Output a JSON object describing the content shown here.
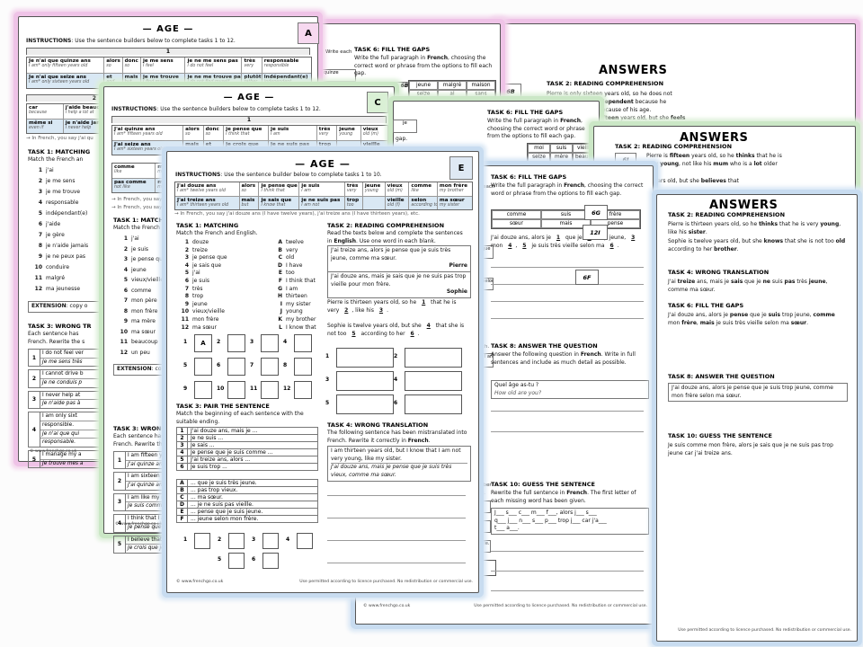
{
  "colors": {
    "pink": "#efc3e7",
    "green": "#cbe7c6",
    "blue": "#c8dcf0"
  },
  "footer": {
    "copyright": "© www.frenchgo.co.uk",
    "licence": "Use permitted according to licence purchased. No redistribution or commercial use."
  },
  "a1": {
    "title": "— AGE —",
    "badge": "A",
    "instructions": [
      [
        "b",
        "INSTRUCTIONS"
      ],
      ": Use the sentence builders below to complete tasks 1 to 12."
    ],
    "builder1_header": "1",
    "builder1": {
      "cols": [
        {
          "w": 88,
          "c": [
            [
              "Je n'ai que quinze ans",
              "I am* only fifteen years old"
            ],
            [
              "Je n'ai que seize ans",
              "I am* only sixteen years old"
            ]
          ]
        },
        {
          "w": 20,
          "c": [
            [
              "alors",
              "so"
            ],
            [
              "et",
              "and"
            ]
          ]
        },
        {
          "w": 20,
          "c": [
            [
              "donc",
              "so"
            ],
            [
              "mais",
              "but"
            ]
          ]
        },
        {
          "w": 50,
          "c": [
            [
              "je me sens",
              "I feel"
            ],
            [
              "je me trouve",
              "I find myself"
            ]
          ]
        },
        {
          "w": 64,
          "c": [
            [
              "je ne me sens pas",
              "I do not feel"
            ],
            [
              "je ne me trouve pas",
              "I do not find myself"
            ]
          ]
        },
        {
          "w": 22,
          "c": [
            [
              "très",
              "very"
            ],
            [
              "plutôt",
              "rather"
            ]
          ]
        },
        {
          "w": 56,
          "c": [
            [
              "responsable",
              "responsible"
            ],
            [
              "indépendant(e)",
              "independent"
            ]
          ]
        }
      ]
    },
    "builder2_header": "2",
    "builder2": {
      "cols": [
        {
          "w": 40,
          "c": [
            [
              "car",
              "because"
            ],
            [
              "même si",
              "even if"
            ]
          ]
        },
        {
          "w": 112,
          "c": [
            [
              "j'aide beaucoup à la",
              "I help a lot at"
            ],
            [
              "je n'aide jamais",
              "I never help"
            ]
          ]
        }
      ]
    },
    "note": "→ In French, you say j'ai qu",
    "task1": {
      "title": "TASK 1: MATCHING",
      "sub": "Match the French an",
      "items": [
        "j'ai",
        "je me sens",
        "je me trouve",
        "responsable",
        "indépendant(e)",
        "j'aide",
        "je gère",
        "je n'aide jamais",
        "je ne peux pas",
        "conduire",
        "malgré",
        "ma jeunesse"
      ]
    },
    "extension": [
      [
        "b",
        "EXTENSION"
      ],
      ": copy o"
    ],
    "task3": {
      "title": "TASK 3: WRONG TR",
      "sub1": "Each  sentence  has",
      "sub2": "French. Rewrite the s",
      "rows": [
        {
          "en": [
            "I do not feel ver"
          ],
          "fr": [
            "Je me sens très"
          ]
        },
        {
          "en": [
            "I cannot drive b"
          ],
          "fr": [
            "Je ne conduis p"
          ]
        },
        {
          "en": [
            "I never help at"
          ],
          "fr": [
            "Je n'aide pas à"
          ]
        },
        {
          "en": [
            "I am only sixt",
            "responsible."
          ],
          "fr": [
            "Je n'ai que qui",
            "responsable."
          ]
        },
        {
          "en": [
            "I manage my a"
          ],
          "fr": [
            "Je trouve mes a"
          ]
        }
      ]
    }
  },
  "a2": {
    "task6_title": "TASK 6: FILL THE GAPS",
    "task6_sub": [
      "Write the full paragraph in ",
      [
        "b",
        "French"
      ],
      ", choosing the correct word or phrase from the options to fill each gap."
    ],
    "options": [
      [
        "jeune",
        "malgré",
        "maison"
      ],
      [
        "seize",
        "ai",
        "sans"
      ]
    ],
    "frag_write": "Write each",
    "frag_quinze": "quinze",
    "frag_badge": "6B"
  },
  "answers_a": {
    "title": "ANSWERS",
    "task2_title": "TASK 2: READING COMPREHENSION",
    "badge": "6B",
    "l1": [
      "Pierre  is  only  sixteen  years  old,  so  he  does  not"
    ],
    "l2": [
      [
        "b",
        "find"
      ],
      "  himself  very  ",
      [
        "b",
        "independent"
      ],
      "  because  he"
    ],
    "l3": [
      "because of his age."
    ],
    "l4": [
      [
        "b",
        "fifteen"
      ],
      "  years  old,  but  she  ",
      [
        "b",
        "feels"
      ]
    ]
  },
  "c1": {
    "title": "— AGE —",
    "badge": "C",
    "instructions": [
      [
        "b",
        "INSTRUCTIONS"
      ],
      ": Use the sentence builders below to complete tasks 1 to 12."
    ],
    "builder1_header": "1",
    "builder1": {
      "cols": [
        {
          "w": 80,
          "c": [
            [
              "J'ai quinze ans",
              "I am* fifteen years old"
            ],
            [
              "J'ai seize ans",
              "I am* sixteen years old"
            ]
          ]
        },
        {
          "w": 22,
          "c": [
            [
              "alors",
              "so"
            ],
            [
              "mais",
              "but"
            ]
          ]
        },
        {
          "w": 22,
          "c": [
            [
              "donc",
              "so"
            ],
            [
              "et",
              "and"
            ]
          ]
        },
        {
          "w": 50,
          "c": [
            [
              "je pense que",
              "I think that"
            ],
            [
              "je crois que",
              "I believe that"
            ]
          ]
        },
        {
          "w": 54,
          "c": [
            [
              "je suis",
              "I am"
            ],
            [
              "je ne suis pas",
              "I am not"
            ]
          ]
        },
        {
          "w": 22,
          "c": [
            [
              "très",
              "very"
            ],
            [
              "trop",
              "too"
            ]
          ]
        },
        {
          "w": 26,
          "c": [
            [
              "jeune",
              "young"
            ],
            0
          ]
        },
        {
          "w": 30,
          "c": [
            [
              "vieux",
              "old (m)"
            ],
            [
              "vieille",
              "old (f)"
            ]
          ]
        }
      ]
    },
    "builder2": {
      "cols": [
        {
          "w": 46,
          "c": [
            [
              "comme",
              "like"
            ],
            [
              "pas comme",
              "not like"
            ]
          ]
        },
        {
          "w": 60,
          "c": [
            [
              "mon père",
              "my dad"
            ],
            [
              "mon frère",
              "my brother"
            ]
          ]
        }
      ]
    },
    "notes": [
      "→ In French, you say j'ai quinz",
      "→ In French, you say je suis pl"
    ],
    "task1": {
      "title": "TASK 1: MATCHING",
      "sub": "Match the French and E",
      "items": [
        "j'ai",
        "je suis",
        "je pense que",
        "jeune",
        "vieux/vieille",
        "comme",
        "mon père",
        "mon frère",
        "ma mère",
        "ma sœur",
        "beaucoup",
        "un peu"
      ]
    },
    "extension": [
      [
        "b",
        "EXTENSION"
      ],
      ": copy out"
    ],
    "task3": {
      "title": "TASK 3: WRONG TRAN",
      "sub1": "Each  sentence  has  b",
      "sub2": "French. Rewrite the sent",
      "rows": [
        {
          "en": [
            "I am fifteen years"
          ],
          "fr": [
            "J'ai quinze ans, alo"
          ]
        },
        {
          "en": [
            "I am sixteen years"
          ],
          "fr": [
            "J'ai quinze ans, ma"
          ]
        },
        {
          "en": [
            "I am like my mum."
          ],
          "fr": [
            "Je suis comme ma"
          ]
        },
        {
          "en": [
            "I think that I am n"
          ],
          "fr": [
            "Je pense que je su"
          ]
        },
        {
          "en": [
            "I believe that I am"
          ],
          "fr": [
            "Je crois que je suis"
          ]
        }
      ]
    }
  },
  "c2": {
    "task6_title": "TASK 6: FILL THE GAPS",
    "task6_sub": [
      "Write the full paragraph in ",
      [
        "b",
        "French"
      ],
      ", choosing the correct word or phrase from the options to fill each gap."
    ],
    "options": [
      [
        "moi",
        "suis",
        "vieille"
      ],
      [
        "seize",
        "mère",
        "beaucoup"
      ]
    ],
    "frag_je": "je",
    "frag_gap": "gap."
  },
  "answers_c": {
    "title": "ANSWERS",
    "task2_title": "TASK 2: READING COMPREHENSION",
    "badge": "6J",
    "l1": [
      "Pierre is ",
      [
        "b",
        "fifteen"
      ],
      " years old, so he ",
      [
        "b",
        "thinks"
      ],
      " that he is"
    ],
    "l2": [
      "very ",
      [
        "b",
        "young"
      ],
      ", not like his ",
      [
        "b",
        "mum"
      ],
      " who is a ",
      [
        "b",
        "lot"
      ],
      " older"
    ],
    "l3": [
      "years old, but she ",
      [
        "b",
        "believes"
      ],
      " that"
    ]
  },
  "e1": {
    "title": "— AGE —",
    "badge": "E",
    "instructions": [
      [
        "b",
        "INSTRUCTIONS"
      ],
      ": Use the sentence builder below to complete tasks 1 to 10."
    ],
    "builder": {
      "cols": [
        {
          "w": 74,
          "c": [
            [
              "J'ai douze ans",
              "I am* twelve years old"
            ],
            [
              "J'ai treize ans",
              "I am* thirteen years old"
            ]
          ]
        },
        {
          "w": 22,
          "c": [
            [
              "alors",
              "so"
            ],
            [
              "mais",
              "but"
            ]
          ]
        },
        {
          "w": 46,
          "c": [
            [
              "je pense que",
              "I think that"
            ],
            [
              "je sais que",
              "I know that"
            ]
          ]
        },
        {
          "w": 52,
          "c": [
            [
              "je suis",
              "I am"
            ],
            [
              "je ne suis pas",
              "I am not"
            ]
          ]
        },
        {
          "w": 20,
          "c": [
            [
              "très",
              "very"
            ],
            [
              "trop",
              "too"
            ]
          ]
        },
        {
          "w": 25,
          "c": [
            [
              "jeune",
              "young"
            ],
            0
          ]
        },
        {
          "w": 27,
          "c": [
            [
              "vieux",
              "old (m)"
            ],
            [
              "vieille",
              "old (f)"
            ]
          ]
        },
        {
          "w": 32,
          "c": [
            [
              "comme",
              "like"
            ],
            [
              "selon",
              "according to"
            ]
          ]
        },
        {
          "w": 40,
          "c": [
            [
              "mon frère",
              "my brother"
            ],
            [
              "ma sœur",
              "my sister"
            ]
          ]
        }
      ]
    },
    "note": "→ In French, you say j'ai douze ans (I have twelve years), j'ai treize ans (I have thirteen years), etc.",
    "task1": {
      "title": "TASK 1: MATCHING",
      "sub": "Match the French and English.",
      "french": [
        "douze",
        "treize",
        "je pense que",
        "je sais que",
        "j'ai",
        "je suis",
        "très",
        "trop",
        "jeune",
        "vieux/vieille",
        "mon frère",
        "ma sœur"
      ],
      "english": [
        "twelve",
        "very",
        "old",
        "I have",
        "too",
        "I think that",
        "I am",
        "thirteen",
        "my sister",
        "young",
        "my brother",
        "I know that"
      ],
      "letters": [
        "A",
        "B",
        "C",
        "D",
        "E",
        "F",
        "G",
        "H",
        "I",
        "J",
        "K",
        "L"
      ],
      "example": "A"
    },
    "task2": {
      "title": "TASK 2: READING COMPREHENSION",
      "sub": [
        "Read the texts below and complete the sentences in ",
        [
          "b",
          "English"
        ],
        ". Use one word in each blank."
      ],
      "text1": "J'ai treize ans, alors je pense que je suis très jeune, comme ma sœur.",
      "author1": "Pierre",
      "text2": "J'ai douze ans, mais je sais que je ne suis pas trop vieille pour mon frère.",
      "author2": "Sophie",
      "p1": [
        "Pierre is thirteen years old, so he ",
        [
          "bl",
          "1"
        ],
        " that he is very ",
        [
          "bl",
          "2"
        ],
        ", like his ",
        [
          "bl",
          "3"
        ],
        "."
      ],
      "p2": [
        "Sophie is twelve years old, but she ",
        [
          "bl",
          "4"
        ],
        " that she is not too ",
        [
          "bl",
          "5"
        ],
        " according to her ",
        [
          "bl",
          "6"
        ],
        "."
      ]
    },
    "task3": {
      "title": "TASK 3: PAIR THE SENTENCE",
      "sub": "Match the beginning of each sentence with the suitable ending.",
      "begin": [
        [
          "1",
          "J'ai douze ans, mais je ..."
        ],
        [
          "2",
          "Je ne suis ..."
        ],
        [
          "3",
          "Je sais ..."
        ],
        [
          "4",
          "Je pense que je suis comme ..."
        ],
        [
          "5",
          "J'ai treize ans, alors ..."
        ],
        [
          "6",
          "Je suis trop ..."
        ]
      ],
      "end": [
        [
          "A",
          "... que je suis très jeune."
        ],
        [
          "B",
          "... pas trop vieux."
        ],
        [
          "C",
          "... ma sœur."
        ],
        [
          "D",
          "... je ne suis pas vieille."
        ],
        [
          "E",
          "... pense que je suis jeune."
        ],
        [
          "F",
          "... jeune selon mon frère."
        ]
      ]
    },
    "task4": {
      "title": "TASK 4: WRONG TRANSLATION",
      "sub": [
        "The following sentence has been mistranslated into French. Rewrite it correctly in ",
        [
          "b",
          "French"
        ],
        "."
      ],
      "en": "I am thirteen years old, but I know that I am not very young, like my sister.",
      "fr": "J'ai douze ans, mais je pense que je suis très vieux, comme ma sœur."
    }
  },
  "e2": {
    "task6_title": "TASK 6: FILL THE GAPS",
    "task6_sub": [
      "Write the full paragraph in ",
      [
        "b",
        "French"
      ],
      ", choosing the correct word or phrase from the options to fill each gap."
    ],
    "options": [
      [
        "comme",
        "suis",
        "frère"
      ],
      [
        "sœur",
        "mais",
        "pense"
      ]
    ],
    "gap_paragraph": [
      "J'ai douze ans, alors je ",
      [
        "bl",
        "1"
      ],
      " que je ",
      [
        "bl",
        "2"
      ],
      " trop jeune, ",
      [
        "bl",
        "3"
      ],
      " mon ",
      [
        "bl",
        "4"
      ],
      ", ",
      [
        "bl",
        "5"
      ],
      " je suis très vieille selon ma ",
      [
        "bl",
        "6"
      ],
      "."
    ],
    "task8_title": "TASK 8: ANSWER THE QUESTION",
    "task8_sub": [
      "Answer the following question in ",
      [
        "b",
        "French"
      ],
      ". Write in full sentences and include as much detail as possible."
    ],
    "q_fr": "Quel âge as-tu ?",
    "q_en": "How old are you?",
    "task10_title": "TASK 10: GUESS THE SENTENCE",
    "task10_sub": [
      "Rewrite the full sentence in ",
      [
        "b",
        "French"
      ],
      ". The first letter of each missing word has been given."
    ],
    "guess": [
      "J___  s___  c___  m___  f___,  alors  j___  s___",
      "q___  j___  n___  s___  p___  trop  j___  car  j'a___",
      "t___  a___."
    ],
    "frags": {
      "write": "rite each",
      "jeque": "je que",
      "ueselon": "ue selon",
      "ench": "ench.",
      "hatiam": "hat I am",
      "enumber": "e number",
      "orrect": "orrect.",
      "lle": "lle.",
      "e": "e.",
      "svieille": "s vieille.",
      "rt": "rt"
    }
  },
  "answers_e": {
    "title": "ANSWERS",
    "task2_title": "TASK 2: READING COMPREHENSION",
    "t2p1": [
      "Pierre is thirteen years old, so he ",
      [
        "b",
        "thinks"
      ],
      " that he is very ",
      [
        "b",
        "young"
      ],
      ", like his ",
      [
        "b",
        "sister"
      ],
      "."
    ],
    "t2p2": [
      "Sophie is twelve years old, but she ",
      [
        "b",
        "knows"
      ],
      " that she is not too ",
      [
        "b",
        "old"
      ],
      " according to her ",
      [
        "b",
        "brother"
      ],
      "."
    ],
    "task4_title": "TASK 4: WRONG TRANSLATION",
    "t4": [
      "J'ai ",
      [
        "b",
        "treize"
      ],
      " ans, mais je ",
      [
        "b",
        "sais"
      ],
      " que je ",
      [
        "b",
        "ne"
      ],
      " suis ",
      [
        "b",
        "pas"
      ],
      " très ",
      [
        "b",
        "jeune"
      ],
      ", comme ma sœur."
    ],
    "task6_title": "TASK 6: FILL THE GAPS",
    "t6": [
      "J'ai douze ans, alors je ",
      [
        "b",
        "pense"
      ],
      " que je ",
      [
        "b",
        "suis"
      ],
      " trop jeune, ",
      [
        "b",
        "comme"
      ],
      " mon ",
      [
        "b",
        "frère"
      ],
      ", ",
      [
        "b",
        "mais"
      ],
      " je suis très vieille selon ma ",
      [
        "b",
        "sœur"
      ],
      "."
    ],
    "task8_title": "TASK 8: ANSWER THE QUESTION",
    "t8": [
      "J'ai douze ans, alors je pense que je suis trop jeune, comme mon frère selon ma sœur."
    ],
    "task10_title": "TASK 10: GUESS THE SENTENCE",
    "t10": [
      "Je suis comme mon frère, alors je sais que je ne suis pas trop jeune car j'ai treize ans."
    ],
    "badges": [
      "6G",
      "12I",
      "6F"
    ]
  }
}
